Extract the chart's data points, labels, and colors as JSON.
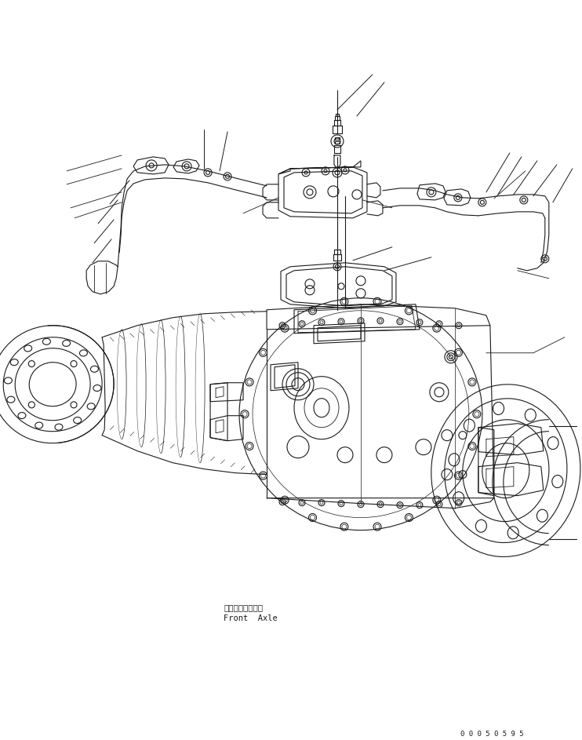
{
  "bg_color": "#ffffff",
  "line_color": "#1a1a1a",
  "line_width": 0.8,
  "fig_width": 7.42,
  "fig_height": 9.43,
  "label_front_axle_ja": "フロントアクスル",
  "label_front_axle_en": "Front  Axle",
  "part_number": "0 0 0 5 0 5 9 5",
  "label_font_size": 7.5,
  "part_number_font_size": 6.5
}
